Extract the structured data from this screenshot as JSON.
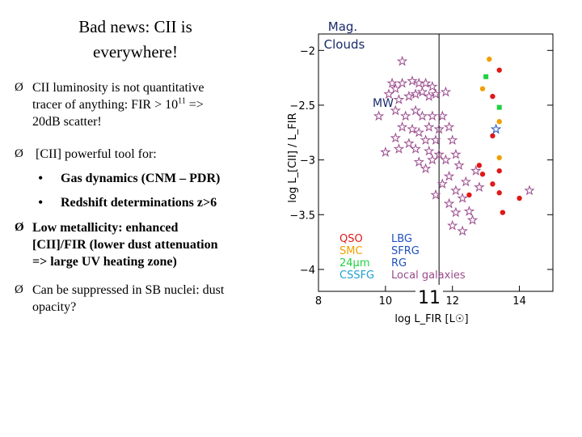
{
  "slide": {
    "title_line1": "Bad news: CII is",
    "title_line2": "everywhere!",
    "page_number": "11"
  },
  "bullets": [
    {
      "marker": "Ø",
      "lines": [
        "CII luminosity is not quantitative",
        "tracer of anything: FIR > 10",
        "20dB scatter!"
      ],
      "sup": "11",
      "sup_after": " =>"
    },
    {
      "marker": "Ø",
      "lines": [
        "[CII] powerful tool for:"
      ]
    },
    {
      "marker": "•",
      "lines": [
        "Gas dynamics (CNM – PDR)"
      ]
    },
    {
      "marker": "•",
      "lines": [
        "Redshift determinations z>6"
      ]
    },
    {
      "marker": "Ø",
      "lines": [
        "Low metallicity: enhanced",
        "[CII]/FIR (lower dust attenuation",
        "=> large UV heating zone)"
      ]
    },
    {
      "marker": "Ø",
      "lines": [
        "Can be suppressed in SB nuclei: dust",
        "opacity?"
      ]
    }
  ],
  "colors": {
    "local": "#9a4a8c",
    "qso": "#e01818",
    "smc": "#f0a000",
    "cssfg": "#20a0d0",
    "lbg": "#2050c0",
    "sfrg": "#2050c0",
    "rg": "#2050c0",
    "green": "#20d040",
    "annotation": "#1a2a6a",
    "axis": "#000000"
  },
  "chart_data": {
    "type": "scatter",
    "xlabel": "log L_FIR [L☉]",
    "ylabel": "log L_[CII] / L_FIR",
    "xlim": [
      8,
      15
    ],
    "ylim": [
      -4.2,
      -1.85
    ],
    "x_ticks": [
      8,
      10,
      12,
      14
    ],
    "y_ticks": [
      -2,
      -2.5,
      -3,
      -3.5,
      -4
    ],
    "x_tick_labels": [
      "8",
      "10",
      "12",
      "14"
    ],
    "y_tick_labels": [
      "−2",
      "−2.5",
      "−3",
      "−3.5",
      "−4"
    ],
    "vline_x": 11.6,
    "annotations": {
      "mag_clouds_1": "Mag.",
      "mag_clouds_2": "Clouds",
      "mw": "MW"
    },
    "legend": [
      {
        "label": "QSO",
        "color": "#e01818"
      },
      {
        "label": "SMC",
        "color": "#f0a000"
      },
      {
        "label": "24μm",
        "color": "#20d040"
      },
      {
        "label": "CSSFG",
        "color": "#20a0d0"
      },
      {
        "label": "LBG",
        "color": "#2050c0"
      },
      {
        "label": "SFRG",
        "color": "#2050c0"
      },
      {
        "label": "RG",
        "color": "#2050c0"
      },
      {
        "label": "Local galaxies",
        "color": "#9a4a8c"
      }
    ],
    "series": [
      {
        "name": "Local galaxies",
        "marker": "star",
        "color": "#9a4a8c",
        "points": [
          [
            10.5,
            -2.1
          ],
          [
            10.2,
            -2.3
          ],
          [
            10.3,
            -2.35
          ],
          [
            10.5,
            -2.3
          ],
          [
            10.8,
            -2.28
          ],
          [
            11.0,
            -2.3
          ],
          [
            11.2,
            -2.3
          ],
          [
            11.4,
            -2.33
          ],
          [
            10.1,
            -2.4
          ],
          [
            10.4,
            -2.45
          ],
          [
            10.7,
            -2.42
          ],
          [
            10.9,
            -2.4
          ],
          [
            11.1,
            -2.38
          ],
          [
            11.3,
            -2.42
          ],
          [
            11.5,
            -2.4
          ],
          [
            11.8,
            -2.38
          ],
          [
            9.8,
            -2.6
          ],
          [
            10.3,
            -2.55
          ],
          [
            10.6,
            -2.6
          ],
          [
            10.9,
            -2.55
          ],
          [
            11.1,
            -2.6
          ],
          [
            11.4,
            -2.6
          ],
          [
            11.7,
            -2.6
          ],
          [
            10.5,
            -2.7
          ],
          [
            10.8,
            -2.72
          ],
          [
            11.0,
            -2.75
          ],
          [
            11.3,
            -2.7
          ],
          [
            11.6,
            -2.72
          ],
          [
            11.9,
            -2.7
          ],
          [
            10.3,
            -2.8
          ],
          [
            10.7,
            -2.85
          ],
          [
            11.2,
            -2.82
          ],
          [
            11.5,
            -2.82
          ],
          [
            12.0,
            -2.82
          ],
          [
            10.0,
            -2.93
          ],
          [
            10.4,
            -2.9
          ],
          [
            10.9,
            -2.9
          ],
          [
            11.3,
            -2.92
          ],
          [
            11.6,
            -2.95
          ],
          [
            12.1,
            -2.95
          ],
          [
            11.0,
            -3.02
          ],
          [
            11.4,
            -3.0
          ],
          [
            11.8,
            -3.0
          ],
          [
            11.2,
            -3.08
          ],
          [
            12.2,
            -3.05
          ],
          [
            12.7,
            -3.1
          ],
          [
            11.9,
            -3.15
          ],
          [
            12.4,
            -3.2
          ],
          [
            11.7,
            -3.22
          ],
          [
            12.1,
            -3.28
          ],
          [
            12.8,
            -3.25
          ],
          [
            11.5,
            -3.32
          ],
          [
            11.9,
            -3.4
          ],
          [
            12.3,
            -3.35
          ],
          [
            12.1,
            -3.48
          ],
          [
            12.5,
            -3.47
          ],
          [
            12.0,
            -3.6
          ],
          [
            12.3,
            -3.65
          ],
          [
            12.6,
            -3.55
          ],
          [
            14.3,
            -3.28
          ]
        ]
      },
      {
        "name": "QSO",
        "marker": "circle",
        "color": "#e01818",
        "points": [
          [
            13.4,
            -2.18
          ],
          [
            13.2,
            -2.42
          ],
          [
            13.2,
            -2.78
          ],
          [
            12.8,
            -3.05
          ],
          [
            13.4,
            -3.1
          ],
          [
            12.9,
            -3.13
          ],
          [
            13.2,
            -3.22
          ],
          [
            13.4,
            -3.3
          ],
          [
            13.5,
            -3.48
          ],
          [
            12.5,
            -3.32
          ],
          [
            14.0,
            -3.35
          ]
        ]
      },
      {
        "name": "SMC",
        "marker": "circle",
        "color": "#f0a000",
        "points": [
          [
            13.1,
            -2.08
          ],
          [
            12.9,
            -2.35
          ],
          [
            13.4,
            -2.65
          ],
          [
            13.4,
            -2.98
          ]
        ]
      },
      {
        "name": "24μm",
        "marker": "square",
        "color": "#20d040",
        "points": [
          [
            13.0,
            -2.24
          ],
          [
            13.4,
            -2.52
          ]
        ]
      },
      {
        "name": "SFRG",
        "marker": "star",
        "color": "#2050c0",
        "points": [
          [
            13.3,
            -2.72
          ]
        ]
      }
    ]
  }
}
